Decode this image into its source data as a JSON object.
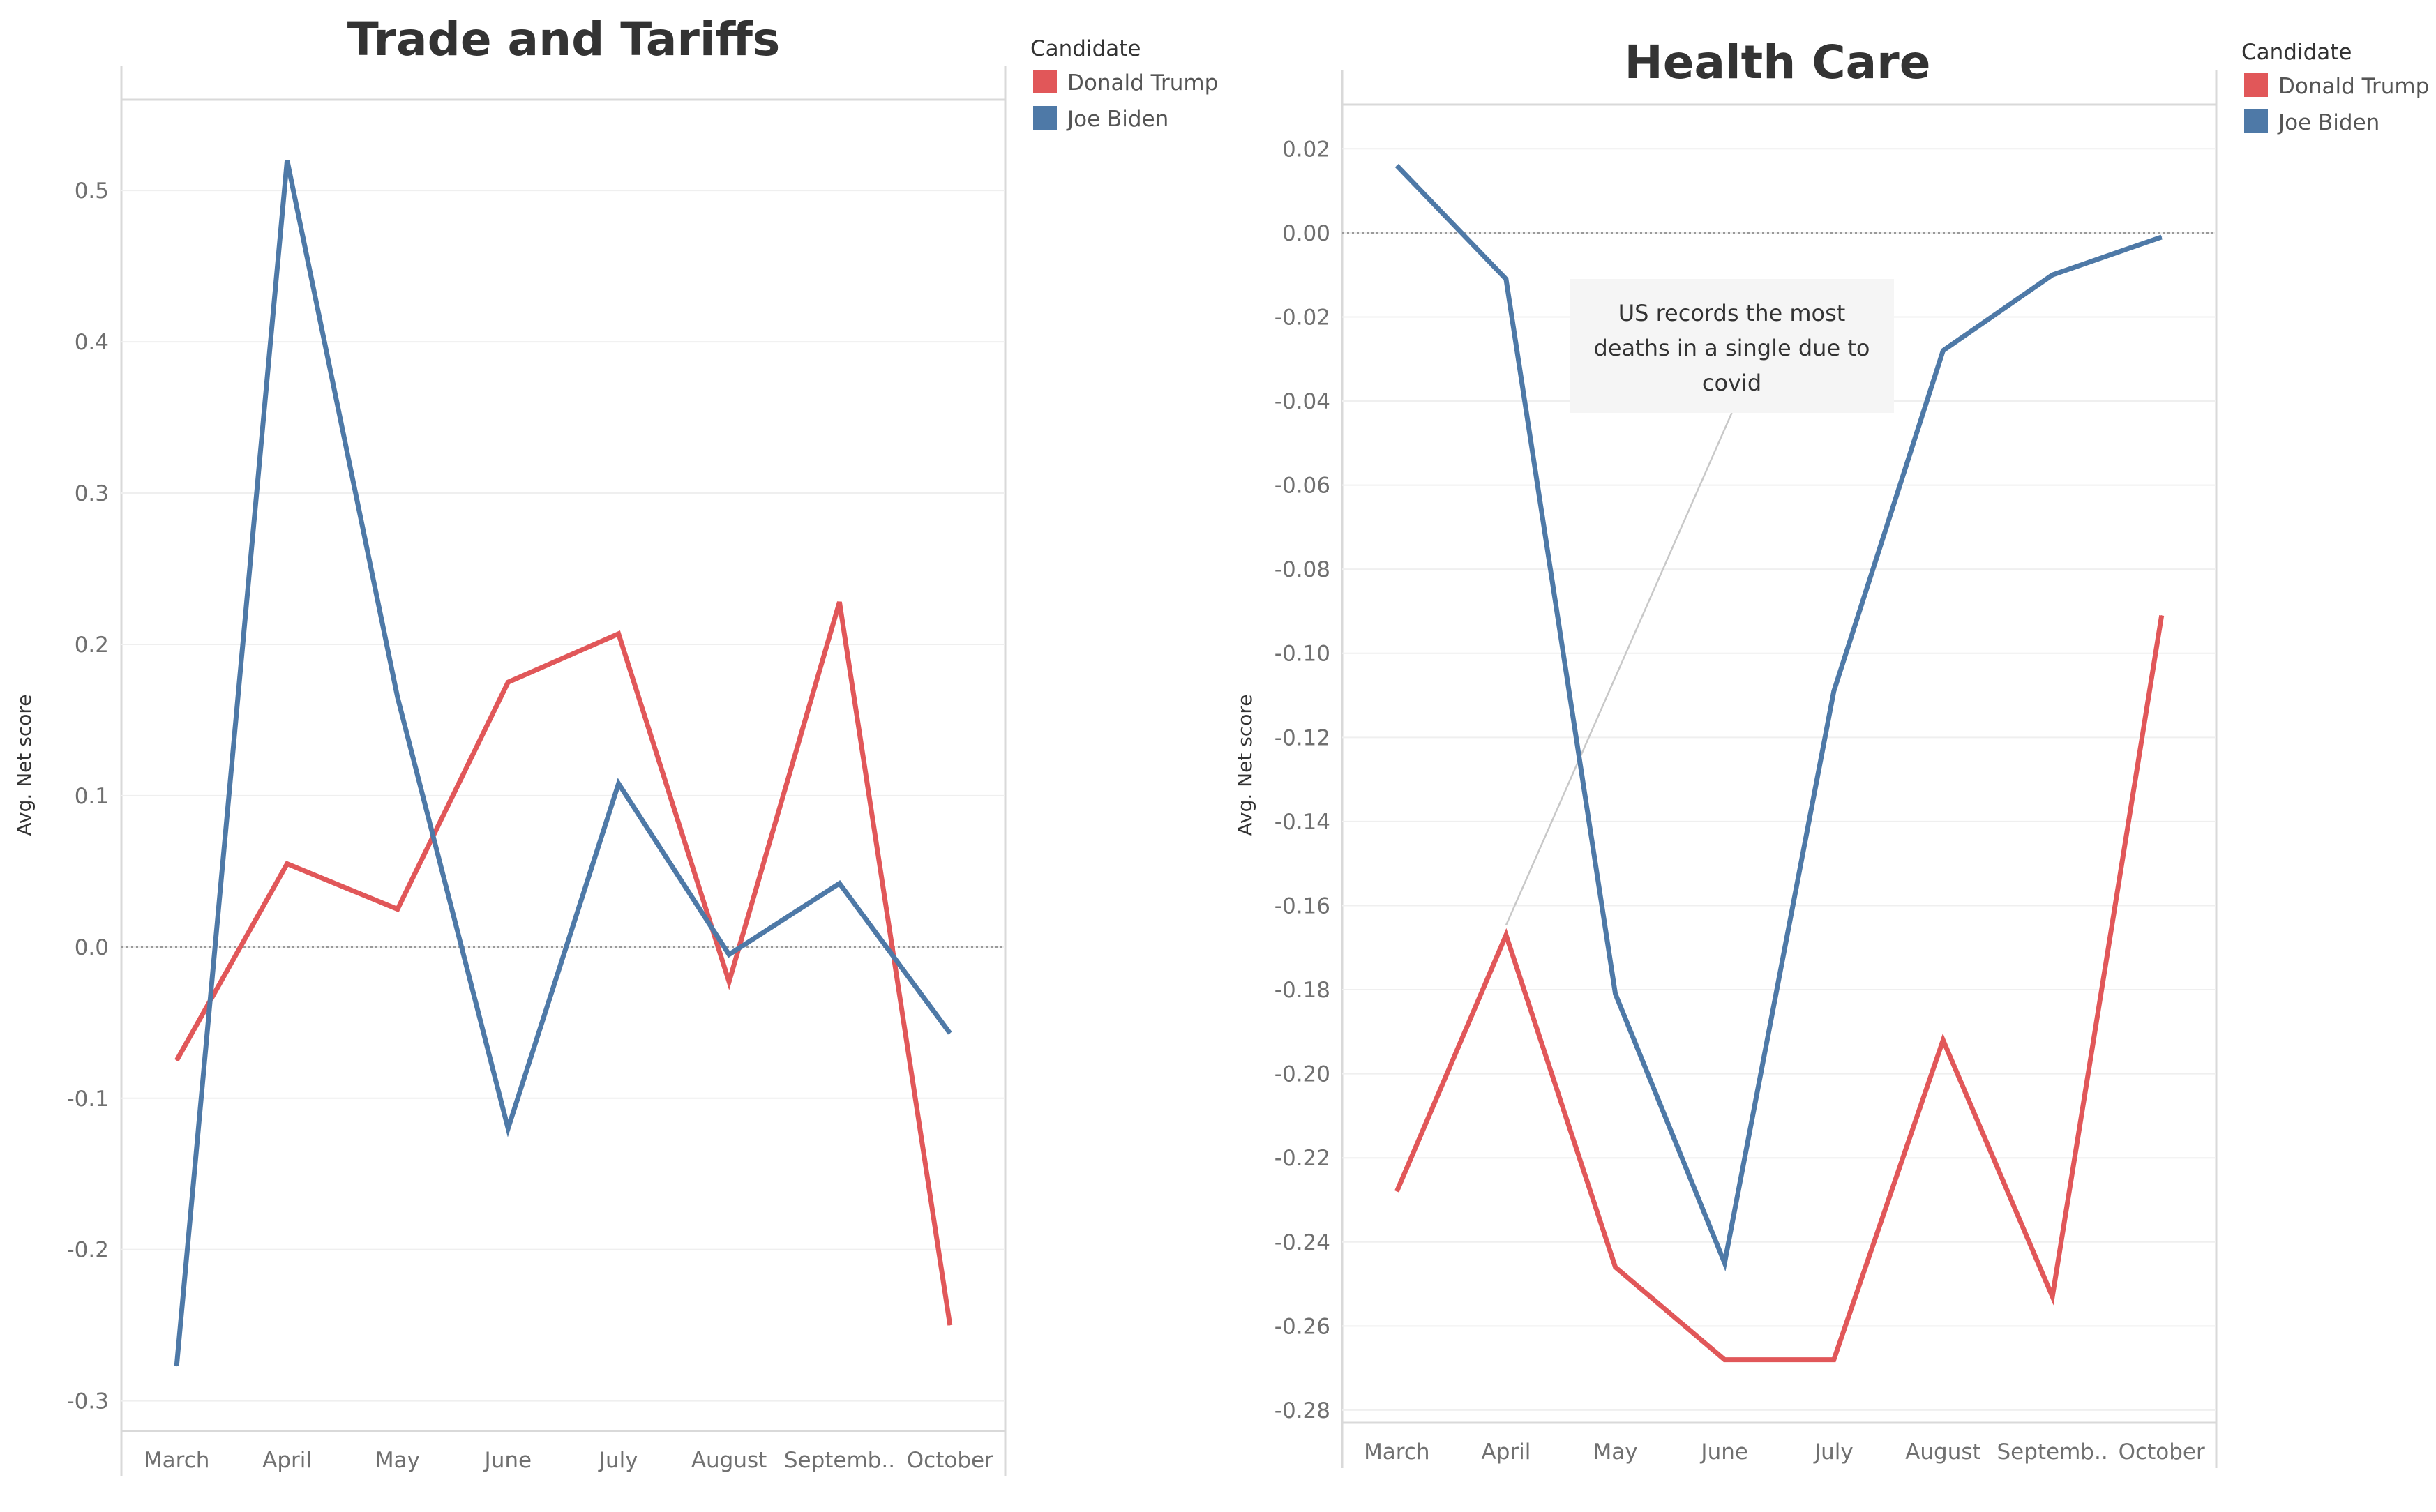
{
  "chart_data": [
    {
      "type": "line",
      "title": "Trade and Tariffs",
      "xlabel": "",
      "ylabel": "Avg. Net score",
      "categories": [
        "March",
        "April",
        "May",
        "June",
        "July",
        "August",
        "Septemb..",
        "October"
      ],
      "ylim": [
        -0.32,
        0.56
      ],
      "yticks": [
        0.5,
        0.4,
        0.3,
        0.2,
        0.1,
        0.0,
        -0.1,
        -0.2,
        -0.3
      ],
      "ytick_labels": [
        "0.5",
        "0.4",
        "0.3",
        "0.2",
        "0.1",
        "0.0",
        "-0.1",
        "-0.2",
        "-0.3"
      ],
      "zero_line": 0,
      "series": [
        {
          "name": "Donald Trump",
          "color": "#e15759",
          "values": [
            -0.075,
            0.055,
            0.025,
            0.175,
            0.207,
            -0.023,
            0.228,
            -0.25
          ]
        },
        {
          "name": "Joe Biden",
          "color": "#4e79a7",
          "values": [
            -0.277,
            0.52,
            0.165,
            -0.12,
            0.108,
            -0.005,
            0.042,
            -0.057
          ]
        }
      ],
      "legend": {
        "title": "Candidate",
        "position": "right",
        "items": [
          "Donald Trump",
          "Joe Biden"
        ]
      }
    },
    {
      "type": "line",
      "title": "Health Care",
      "xlabel": "",
      "ylabel": "Avg. Net score",
      "categories": [
        "March",
        "April",
        "May",
        "June",
        "July",
        "August",
        "Septemb..",
        "October"
      ],
      "ylim": [
        -0.283,
        0.0305
      ],
      "yticks": [
        0.02,
        0.0,
        -0.02,
        -0.04,
        -0.06,
        -0.08,
        -0.1,
        -0.12,
        -0.14,
        -0.16,
        -0.18,
        -0.2,
        -0.22,
        -0.24,
        -0.26,
        -0.28
      ],
      "ytick_labels": [
        "0.02",
        "0.00",
        "-0.02",
        "-0.04",
        "-0.06",
        "-0.08",
        "-0.10",
        "-0.12",
        "-0.14",
        "-0.16",
        "-0.18",
        "-0.20",
        "-0.22",
        "-0.24",
        "-0.26",
        "-0.28"
      ],
      "zero_line": 0,
      "series": [
        {
          "name": "Donald Trump",
          "color": "#e15759",
          "values": [
            -0.228,
            -0.167,
            -0.246,
            -0.268,
            -0.268,
            -0.192,
            -0.253,
            -0.091
          ]
        },
        {
          "name": "Joe Biden",
          "color": "#4e79a7",
          "values": [
            0.016,
            -0.011,
            -0.181,
            -0.245,
            -0.109,
            -0.028,
            -0.01,
            -0.001
          ]
        }
      ],
      "legend": {
        "title": "Candidate",
        "position": "right",
        "items": [
          "Donald Trump",
          "Joe Biden"
        ]
      },
      "annotation": {
        "lines": [
          "US records the most",
          "deaths in a single due to",
          "covid"
        ],
        "target_category": "April",
        "target_series": "Donald Trump",
        "target_value": -0.167
      }
    }
  ]
}
